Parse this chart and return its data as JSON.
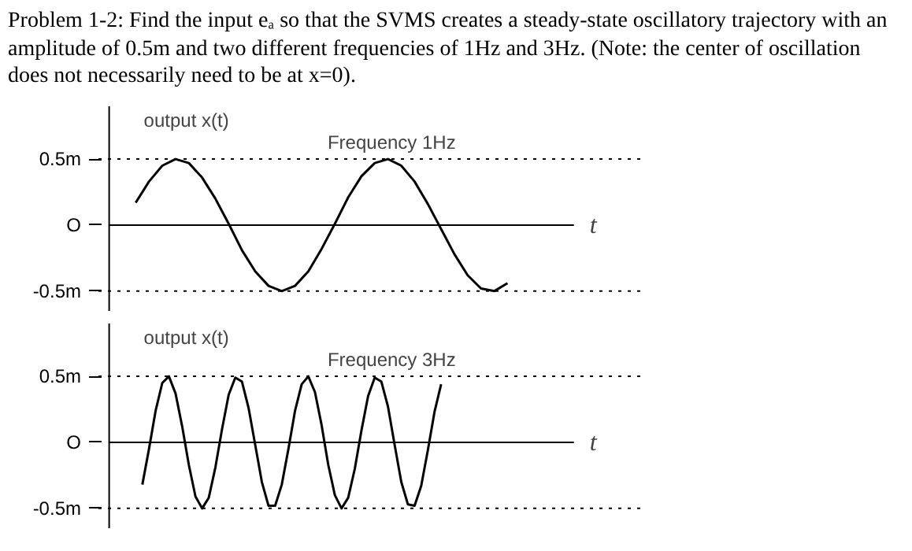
{
  "chart_data": [
    {
      "type": "line",
      "title": "Problem 1-2: Find the input eₐ so that the SVMS creates a steady-state oscillatory trajectory with an amplitude of 0.5m and two different frequencies of 1Hz and 3Hz. (Note: the center of oscillation does not necessarily need to be at x=0).",
      "ylabel": "output x(t)",
      "xlabel": "t",
      "annotations": [
        "Frequency 1Hz"
      ],
      "categories": [
        null,
        null,
        null,
        null,
        null,
        null,
        null,
        null,
        null,
        null,
        null,
        null,
        null,
        null,
        null,
        null,
        null,
        null,
        null,
        null,
        null,
        null,
        null,
        null,
        null,
        null,
        null,
        null,
        null,
        null,
        null,
        null,
        null,
        null,
        null,
        null
      ],
      "series": [
        {
          "color": "#000000",
          "values": [
            null,
            null,
            0.17,
            0.33,
            0.45,
            0.5,
            0.47,
            0.36,
            0.2,
            0.01,
            -0.19,
            -0.35,
            -0.46,
            -0.5,
            -0.46,
            -0.35,
            -0.18,
            0.01,
            0.21,
            0.37,
            0.47,
            0.5,
            0.45,
            0.33,
            0.16,
            -0.03,
            -0.22,
            -0.38,
            -0.48,
            -0.5,
            -0.44,
            null,
            null,
            null,
            null,
            null
          ]
        }
      ],
      "ylim": [
        -0.65,
        0.9
      ],
      "yticks": [
        {
          "value": 0.5,
          "label": "0.5m"
        },
        {
          "value": 0,
          "label": "O"
        },
        {
          "value": -0.5,
          "label": "-0.5m"
        }
      ],
      "tick_labels": "y",
      "grid": false,
      "ref_lines": [
        {
          "axis": "y",
          "value": 0.5,
          "line_style": "dotted"
        },
        {
          "axis": "y",
          "value": -0.5,
          "line_style": "dotted"
        }
      ]
    },
    {
      "type": "line",
      "ylabel": "output x(t)",
      "xlabel": "t",
      "annotations": [
        "Frequency 3Hz"
      ],
      "categories": [
        null,
        null,
        null,
        null,
        null,
        null,
        null,
        null,
        null,
        null,
        null,
        null,
        null,
        null,
        null,
        null,
        null,
        null,
        null,
        null,
        null,
        null,
        null,
        null,
        null,
        null,
        null,
        null,
        null,
        null,
        null,
        null,
        null,
        null,
        null,
        null,
        null,
        null,
        null,
        null,
        null,
        null,
        null,
        null,
        null,
        null,
        null,
        null,
        null,
        null,
        null,
        null,
        null,
        null,
        null,
        null,
        null,
        null,
        null,
        null,
        null,
        null,
        null,
        null,
        null,
        null,
        null,
        null,
        null,
        null,
        null
      ],
      "series": [
        {
          "color": "#000000",
          "values": [
            null,
            null,
            null,
            null,
            null,
            -0.32,
            -0.05,
            0.24,
            0.45,
            0.5,
            0.37,
            0.12,
            -0.17,
            -0.41,
            -0.5,
            -0.42,
            -0.19,
            0.1,
            0.36,
            0.49,
            0.46,
            0.26,
            -0.02,
            -0.3,
            -0.48,
            -0.48,
            -0.32,
            -0.05,
            0.24,
            0.44,
            0.5,
            0.38,
            0.13,
            -0.17,
            -0.4,
            -0.5,
            -0.42,
            -0.2,
            0.09,
            0.35,
            0.49,
            0.46,
            0.27,
            -0.02,
            -0.3,
            -0.47,
            -0.48,
            -0.33,
            -0.06,
            0.23,
            0.44,
            null,
            null,
            null,
            null,
            null,
            null,
            null,
            null,
            null,
            null,
            null,
            null,
            null,
            null,
            null,
            null,
            null,
            null,
            null,
            null
          ]
        }
      ],
      "ylim": [
        -0.65,
        0.9
      ],
      "yticks": [
        {
          "value": 0.5,
          "label": "0.5m"
        },
        {
          "value": 0,
          "label": "O"
        },
        {
          "value": -0.5,
          "label": "-0.5m"
        }
      ],
      "tick_labels": "y",
      "grid": false,
      "ref_lines": [
        {
          "axis": "y",
          "value": 0.5,
          "line_style": "dotted"
        },
        {
          "axis": "y",
          "value": -0.5,
          "line_style": "dotted"
        }
      ]
    }
  ]
}
